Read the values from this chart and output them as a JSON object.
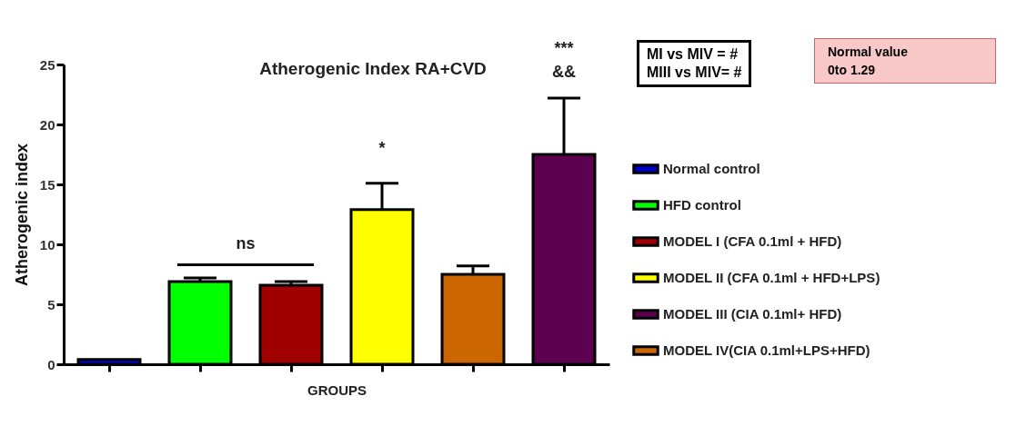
{
  "chart_data": {
    "type": "bar",
    "title": "Atherogenic Index RA+CVD",
    "xlabel": "GROUPS",
    "ylabel": "Atherogenic index",
    "categories": [
      null,
      null,
      null,
      null,
      null,
      null
    ],
    "ylim": [
      0,
      25
    ],
    "yticks": [
      0,
      5,
      10,
      15,
      20,
      25
    ],
    "grid": false,
    "legend": "right",
    "series": [
      {
        "name": "Normal control",
        "color": "#0000cc",
        "values": [
          0.4,
          null,
          null,
          null,
          null,
          null
        ],
        "errors": [
          null,
          null,
          null,
          null,
          null,
          null
        ]
      },
      {
        "name": "HFD control",
        "color": "#00ff00",
        "values": [
          null,
          6.9,
          null,
          null,
          null,
          null
        ],
        "errors": [
          null,
          0.3,
          null,
          null,
          null,
          null
        ]
      },
      {
        "name": "MODEL I (CFA 0.1ml + HFD)",
        "color": "#a00000",
        "values": [
          null,
          null,
          6.6,
          null,
          null,
          null
        ],
        "errors": [
          null,
          null,
          0.3,
          null,
          null,
          null
        ]
      },
      {
        "name": "MODEL II (CFA 0.1ml + HFD+LPS)",
        "color": "#ffff00",
        "values": [
          null,
          null,
          null,
          12.9,
          null,
          null
        ],
        "errors": [
          null,
          null,
          null,
          2.2,
          null,
          null
        ]
      },
      {
        "name": "MODEL III (CIA 0.1ml+ HFD)",
        "color": "#5e0050",
        "values": [
          null,
          null,
          null,
          null,
          null,
          17.5
        ],
        "errors": [
          null,
          null,
          null,
          null,
          null,
          4.7
        ]
      },
      {
        "name": "MODEL IV(CIA 0.1ml+LPS+HFD)",
        "color": "#cc6600",
        "values": [
          null,
          null,
          null,
          null,
          7.5,
          null
        ],
        "errors": [
          null,
          null,
          null,
          null,
          0.7,
          null
        ]
      }
    ],
    "annotations": [
      "ns",
      "*",
      "***",
      "&&",
      "MI vs MIV = #",
      "MIII vs MIV= #",
      "Normal value",
      "0to 1.29"
    ]
  }
}
